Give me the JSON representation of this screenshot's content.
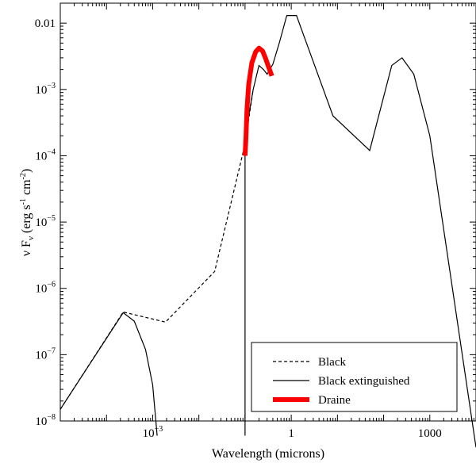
{
  "chart_data": {
    "type": "line",
    "xlabel": "Wavelength (microns)",
    "ylabel_parts": [
      "ν F",
      "ν",
      " (erg s",
      "-1",
      " cm",
      "-2",
      ")"
    ],
    "x_scale": "log",
    "y_scale": "log",
    "xlim": [
      1e-05,
      10000
    ],
    "ylim": [
      1e-08,
      0.02
    ],
    "x_ticks": [
      {
        "value": 0.001,
        "label": "10",
        "sup": "−3"
      },
      {
        "value": 1,
        "label": "1",
        "sup": ""
      },
      {
        "value": 1000,
        "label": "1000",
        "sup": ""
      }
    ],
    "y_ticks": [
      {
        "value": 0.01,
        "label": "0.01",
        "sup": ""
      },
      {
        "value": 0.001,
        "label": "10",
        "sup": "−3"
      },
      {
        "value": 0.0001,
        "label": "10",
        "sup": "−4"
      },
      {
        "value": 1e-05,
        "label": "10",
        "sup": "−5"
      },
      {
        "value": 1e-06,
        "label": "10",
        "sup": "−6"
      },
      {
        "value": 1e-07,
        "label": "10",
        "sup": "−7"
      },
      {
        "value": 1e-08,
        "label": "10",
        "sup": "−8"
      }
    ],
    "legend_position": "lower-right",
    "series": [
      {
        "name": "Black",
        "color": "#000000",
        "style": "dashed",
        "points": [
          [
            1e-05,
            1.5e-08
          ],
          [
            0.00023,
            4.4e-07
          ],
          [
            0.0019,
            3.1e-07
          ],
          [
            0.022,
            1.8e-06
          ],
          [
            0.1,
            0.00015
          ],
          [
            0.15,
            0.001
          ]
        ]
      },
      {
        "name": "Black extinguished",
        "color": "#000000",
        "style": "solid",
        "points": [
          [
            1e-05,
            1.5e-08
          ],
          [
            0.00023,
            4.3e-07
          ],
          [
            0.0004,
            3.2e-07
          ],
          [
            0.0007,
            1.2e-07
          ],
          [
            0.001,
            3.5e-08
          ],
          [
            0.00125,
            6e-09
          ],
          "break",
          [
            0.1,
            6e-09
          ],
          [
            0.1,
            0.0001
          ],
          [
            0.12,
            0.0004
          ],
          [
            0.15,
            0.001
          ],
          [
            0.2,
            0.0023
          ],
          [
            0.25,
            0.002
          ],
          [
            0.3,
            0.0017
          ],
          [
            0.4,
            0.0024
          ],
          [
            0.55,
            0.005
          ],
          [
            0.8,
            0.013
          ],
          [
            1.3,
            0.013
          ],
          [
            8,
            0.0004
          ],
          [
            50,
            0.00012
          ],
          [
            150,
            0.0023
          ],
          [
            250,
            0.003
          ],
          [
            450,
            0.0017
          ],
          [
            1000,
            0.0002
          ],
          [
            10000,
            4e-09
          ]
        ]
      },
      {
        "name": "Draine",
        "color": "#ff0000",
        "style": "thick",
        "points": [
          [
            0.1,
            0.0001
          ],
          [
            0.105,
            0.0002
          ],
          [
            0.11,
            0.0005
          ],
          [
            0.12,
            0.0012
          ],
          [
            0.14,
            0.0025
          ],
          [
            0.17,
            0.0037
          ],
          [
            0.2,
            0.0042
          ],
          [
            0.24,
            0.0038
          ],
          [
            0.28,
            0.0029
          ],
          [
            0.33,
            0.0021
          ],
          [
            0.38,
            0.0016
          ]
        ]
      }
    ]
  }
}
